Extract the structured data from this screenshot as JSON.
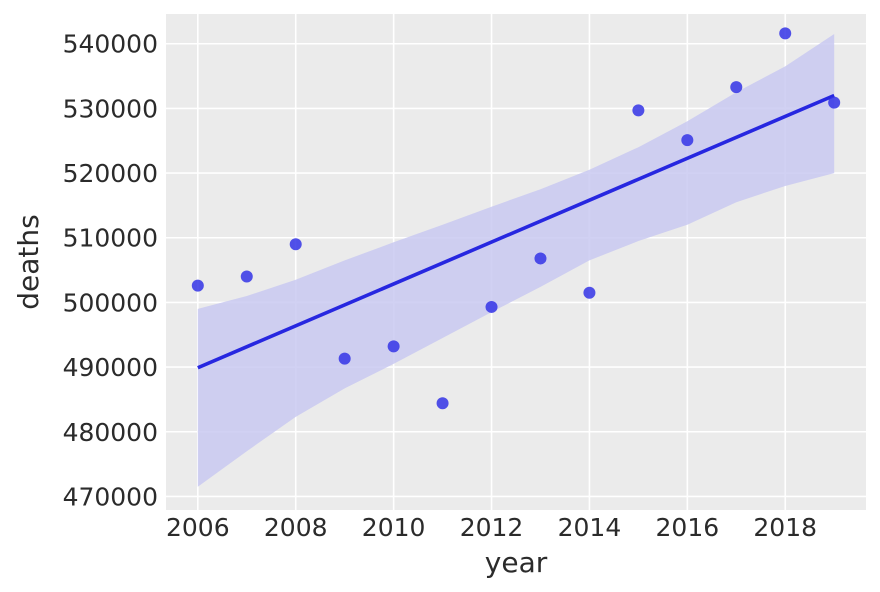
{
  "chart_data": {
    "type": "scatter",
    "title": "",
    "xlabel": "year",
    "ylabel": "deaths",
    "xlim": [
      2005.35,
      2019.65
    ],
    "ylim": [
      467900,
      544600
    ],
    "xticks": [
      2006,
      2008,
      2010,
      2012,
      2014,
      2016,
      2018
    ],
    "yticks": [
      470000,
      480000,
      490000,
      500000,
      510000,
      520000,
      530000,
      540000
    ],
    "grid": true,
    "legend": "none",
    "series": [
      {
        "kind": "scatter",
        "x": [
          2006,
          2007,
          2008,
          2009,
          2010,
          2011,
          2012,
          2013,
          2014,
          2015,
          2016,
          2017,
          2018,
          2019
        ],
        "y": [
          502600,
          504000,
          509000,
          491300,
          493200,
          484400,
          499300,
          506800,
          501500,
          529700,
          525100,
          533300,
          541600,
          530900
        ]
      },
      {
        "kind": "regression-line",
        "x": [
          2006,
          2019
        ],
        "y": [
          489900,
          532000
        ]
      },
      {
        "kind": "confidence-band",
        "x": [
          2006,
          2007,
          2008,
          2009,
          2010,
          2011,
          2012,
          2013,
          2014,
          2015,
          2016,
          2017,
          2018,
          2019
        ],
        "lower": [
          471500,
          477000,
          482300,
          486700,
          490500,
          494500,
          498500,
          502400,
          506500,
          509500,
          512000,
          515500,
          518000,
          520000
        ],
        "upper": [
          499000,
          501000,
          503500,
          506500,
          509300,
          512000,
          514800,
          517500,
          520500,
          524000,
          528000,
          532500,
          536500,
          541500
        ]
      }
    ],
    "colors": {
      "background": "#ebebeb",
      "grid": "#ffffff",
      "points": "#3434e6",
      "line": "#2727e0",
      "band": "#c9c9f1"
    }
  }
}
